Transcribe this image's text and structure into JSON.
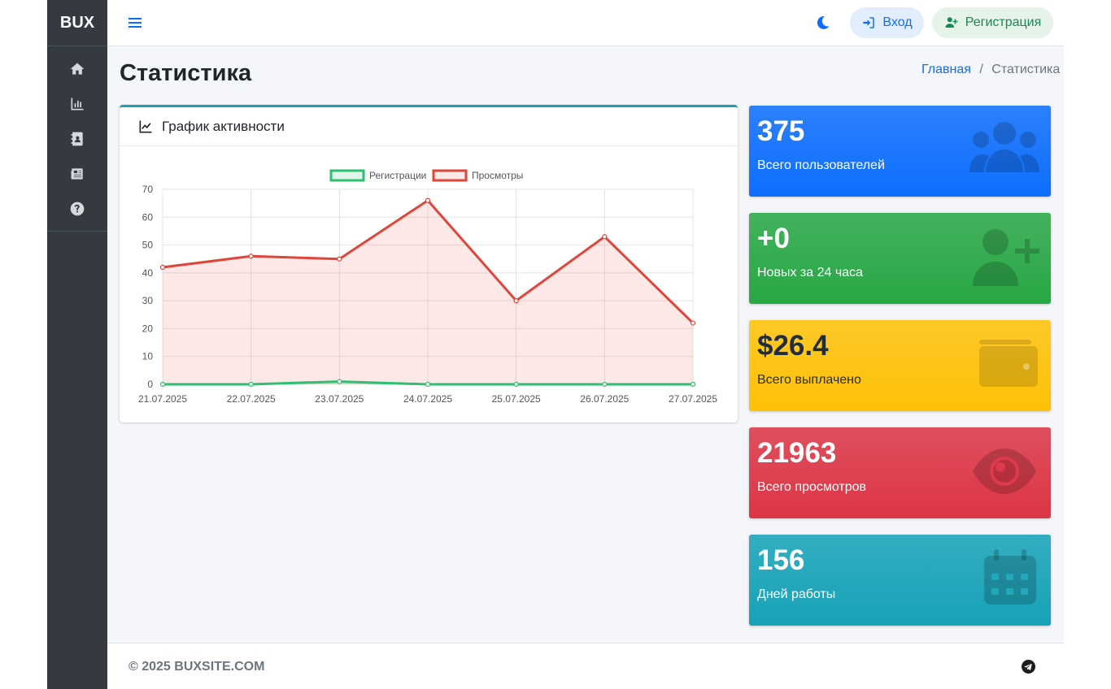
{
  "brand": "BUX",
  "sidebar": {
    "items": [
      {
        "icon": "home-icon"
      },
      {
        "icon": "chart-bar-icon"
      },
      {
        "icon": "address-book-icon"
      },
      {
        "icon": "newspaper-icon"
      },
      {
        "icon": "question-circle-icon"
      }
    ]
  },
  "header": {
    "login_label": "Вход",
    "register_label": "Регистрация"
  },
  "page": {
    "title": "Статистика",
    "breadcrumb_home": "Главная",
    "breadcrumb_sep": "/",
    "breadcrumb_current": "Статистика"
  },
  "chart_card": {
    "title": "График активности"
  },
  "chart_data": {
    "type": "line",
    "categories": [
      "21.07.2025",
      "22.07.2025",
      "23.07.2025",
      "24.07.2025",
      "25.07.2025",
      "26.07.2025",
      "27.07.2025"
    ],
    "series": [
      {
        "name": "Регистрации",
        "values": [
          0,
          0,
          1,
          0,
          0,
          0,
          0
        ],
        "color": "#2fbf71",
        "fill": "rgba(47,191,113,0.15)"
      },
      {
        "name": "Просмотры",
        "values": [
          42,
          46,
          45,
          66,
          30,
          53,
          22
        ],
        "color": "#e0453a",
        "fill": "rgba(240,90,90,0.14)"
      }
    ],
    "ylim": [
      0,
      70
    ],
    "yticks": [
      0,
      10,
      20,
      30,
      40,
      50,
      60,
      70
    ],
    "grid": true,
    "legend": "top-center"
  },
  "stats": [
    {
      "value": "375",
      "label": "Всего пользователей",
      "color": "#0d6efd",
      "icon": "users-icon"
    },
    {
      "value": "+0",
      "label": "Новых за 24 часа",
      "color": "#28a745",
      "icon": "user-plus-icon"
    },
    {
      "value": "$26.4",
      "label": "Всего выплачено",
      "color": "#ffc107",
      "icon": "wallet-icon"
    },
    {
      "value": "21963",
      "label": "Всего просмотров",
      "color": "#dc3545",
      "icon": "eye-icon"
    },
    {
      "value": "156",
      "label": "Дней работы",
      "color": "#17a2b8",
      "icon": "calendar-icon"
    }
  ],
  "footer": {
    "copyright": "© 2025 BUXSITE.COM"
  }
}
